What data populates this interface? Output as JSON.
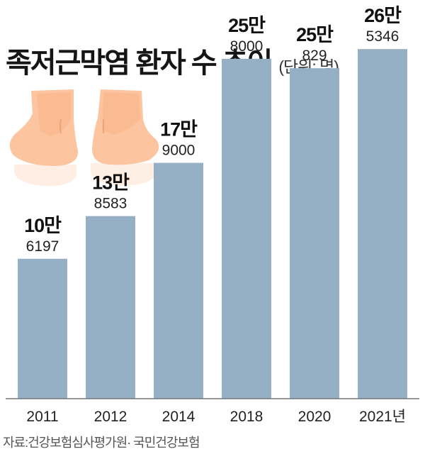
{
  "title": "족저근막염 환자 수 추이",
  "unit": "(단위: 명)",
  "source": "자료:건강보험심사평가원· 국민건강보험",
  "colors": {
    "bar": "#95afc4",
    "axis": "#777777",
    "skin": "#fcc5a0"
  },
  "chart_data": {
    "type": "bar",
    "categories": [
      "2011",
      "2012",
      "2014",
      "2018",
      "2020",
      "2021년"
    ],
    "values": [
      106197,
      138583,
      179000,
      258000,
      250829,
      265346
    ],
    "value_labels": [
      [
        "10만",
        "6197"
      ],
      [
        "13만",
        "8583"
      ],
      [
        "17만",
        "9000"
      ],
      [
        "25만",
        "8000"
      ],
      [
        "25만",
        "829"
      ],
      [
        "26만",
        "5346"
      ]
    ],
    "title": "족저근막염 환자 수 추이",
    "xlabel": "",
    "ylabel": "",
    "ylim": [
      0,
      280000
    ],
    "grid": false,
    "legend": "none"
  }
}
